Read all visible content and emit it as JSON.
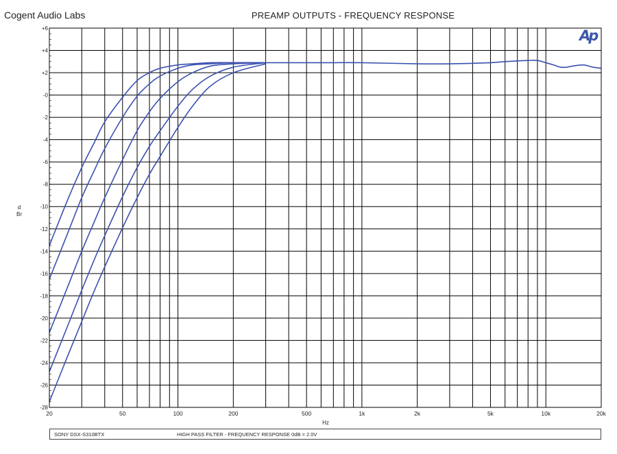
{
  "header": {
    "brand": "Cogent Audio Labs",
    "title": "PREAMP OUTPUTS - FREQUENCY RESPONSE",
    "logo_text": "Ap"
  },
  "footer": {
    "device": "SONY DSX-S310BTX",
    "description": "HIGH PASS FILTER  -  FREQUENCY RESPONSE    0dB = 2.0V"
  },
  "colors": {
    "curve": "#3a50b0",
    "grid": "#000000",
    "logo": "#3b58a8"
  },
  "chart_data": {
    "type": "line",
    "title": "PREAMP OUTPUTS - FREQUENCY RESPONSE",
    "xlabel": "Hz",
    "ylabel": "dBr",
    "x_scale": "log",
    "xlim": [
      20,
      20000
    ],
    "ylim": [
      -28,
      6
    ],
    "grid": true,
    "x_ticks": [
      20,
      50,
      100,
      200,
      500,
      1000,
      2000,
      5000,
      10000,
      20000
    ],
    "x_tick_labels": [
      "20",
      "50",
      "100",
      "200",
      "500",
      "1k",
      "2k",
      "5k",
      "10k",
      "20k"
    ],
    "y_ticks": [
      6,
      4,
      2,
      0,
      -2,
      -4,
      -6,
      -8,
      -10,
      -12,
      -14,
      -16,
      -18,
      -20,
      -22,
      -24,
      -26,
      -28
    ],
    "y_tick_labels": [
      "+6",
      "+4",
      "+2",
      "-0",
      "-2",
      "-4",
      "-6",
      "-8",
      "-10",
      "-12",
      "-14",
      "-16",
      "-18",
      "-20",
      "-22",
      "-24",
      "-26",
      "-28"
    ],
    "series": [
      {
        "x": [
          20,
          25,
          30,
          35,
          40,
          50,
          60,
          70,
          80,
          100,
          120,
          150,
          200,
          300
        ],
        "y": [
          -13.5,
          -9.5,
          -6.5,
          -4.3,
          -2.4,
          -0.2,
          1.3,
          2.0,
          2.4,
          2.7,
          2.8,
          2.9,
          2.9,
          2.9
        ]
      },
      {
        "x": [
          20,
          25,
          30,
          35,
          40,
          50,
          60,
          70,
          80,
          100,
          120,
          150,
          200,
          300
        ],
        "y": [
          -16.5,
          -12.5,
          -9.2,
          -6.8,
          -4.8,
          -2.0,
          -0.1,
          1.0,
          1.7,
          2.4,
          2.7,
          2.8,
          2.9,
          2.9
        ]
      },
      {
        "x": [
          20,
          25,
          30,
          35,
          40,
          50,
          60,
          70,
          80,
          100,
          120,
          150,
          200,
          300
        ],
        "y": [
          -21.3,
          -17.3,
          -14.0,
          -11.4,
          -9.2,
          -5.8,
          -3.2,
          -1.5,
          -0.3,
          1.2,
          2.0,
          2.6,
          2.8,
          2.9
        ]
      },
      {
        "x": [
          20,
          25,
          30,
          35,
          40,
          50,
          60,
          70,
          80,
          100,
          120,
          150,
          200,
          300
        ],
        "y": [
          -24.8,
          -20.8,
          -17.5,
          -14.8,
          -12.6,
          -9.1,
          -6.5,
          -4.6,
          -3.2,
          -1.0,
          0.5,
          1.7,
          2.5,
          2.9
        ]
      },
      {
        "x": [
          20,
          25,
          30,
          35,
          40,
          50,
          60,
          70,
          80,
          100,
          120,
          150,
          200,
          300
        ],
        "y": [
          -27.5,
          -23.5,
          -20.3,
          -17.6,
          -15.4,
          -11.9,
          -9.2,
          -7.1,
          -5.5,
          -2.9,
          -1.0,
          0.8,
          2.0,
          2.8
        ]
      },
      {
        "x": [
          300,
          500,
          700,
          1000,
          2000,
          3000,
          5000,
          6000,
          8000,
          9000,
          10000,
          11000,
          12000,
          13000,
          14000,
          16000,
          18000,
          20000
        ],
        "y": [
          2.9,
          2.9,
          2.9,
          2.9,
          2.8,
          2.8,
          2.9,
          3.0,
          3.1,
          3.1,
          2.9,
          2.7,
          2.5,
          2.5,
          2.6,
          2.7,
          2.5,
          2.4
        ]
      }
    ]
  }
}
